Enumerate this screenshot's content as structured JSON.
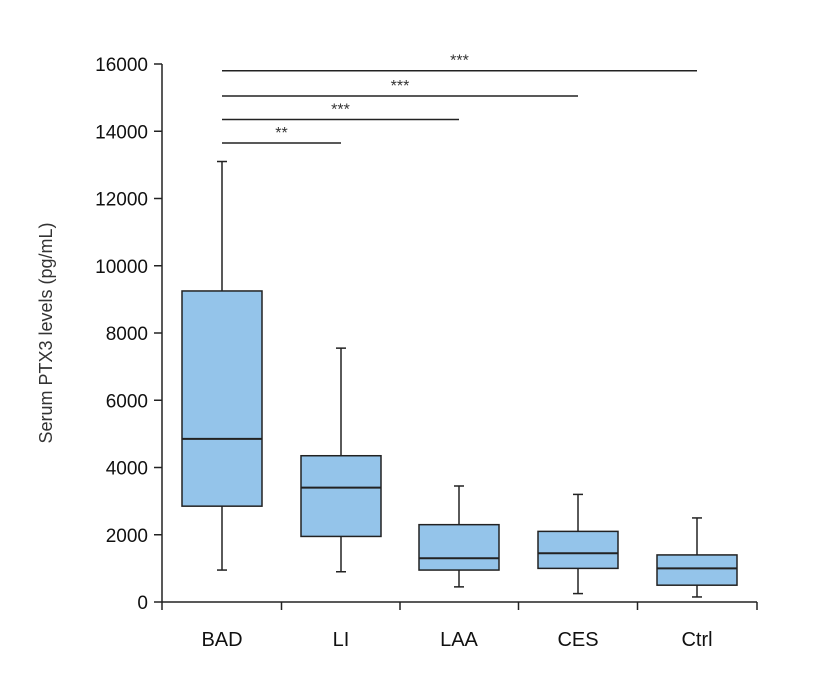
{
  "chart_data": {
    "type": "box",
    "title": "",
    "xlabel": "",
    "ylabel": "Serum PTX3 levels (pg/mL)",
    "ylim": [
      0,
      16000
    ],
    "yticks": [
      0,
      2000,
      4000,
      6000,
      8000,
      10000,
      12000,
      14000,
      16000
    ],
    "ytick_labels": [
      "0",
      "2000",
      "4000",
      "6000",
      "8000",
      "10000",
      "12000",
      "14000",
      "16000"
    ],
    "categories": [
      "BAD",
      "LI",
      "LAA",
      "CES",
      "Ctrl"
    ],
    "box_color": "#94c4ea",
    "boxes": [
      {
        "min": 950,
        "q1": 2850,
        "median": 4850,
        "q3": 9250,
        "max": 13100
      },
      {
        "min": 900,
        "q1": 1950,
        "median": 3400,
        "q3": 4350,
        "max": 7550
      },
      {
        "min": 450,
        "q1": 950,
        "median": 1300,
        "q3": 2300,
        "max": 3450
      },
      {
        "min": 250,
        "q1": 1000,
        "median": 1450,
        "q3": 2100,
        "max": 3200
      },
      {
        "min": 150,
        "q1": 500,
        "median": 1000,
        "q3": 1400,
        "max": 2500
      }
    ],
    "significance": [
      {
        "from": "BAD",
        "to": "LI",
        "label": "**",
        "y": 13650
      },
      {
        "from": "BAD",
        "to": "LAA",
        "label": "***",
        "y": 14350
      },
      {
        "from": "BAD",
        "to": "CES",
        "label": "***",
        "y": 15050
      },
      {
        "from": "BAD",
        "to": "Ctrl",
        "label": "***",
        "y": 15800
      }
    ]
  }
}
